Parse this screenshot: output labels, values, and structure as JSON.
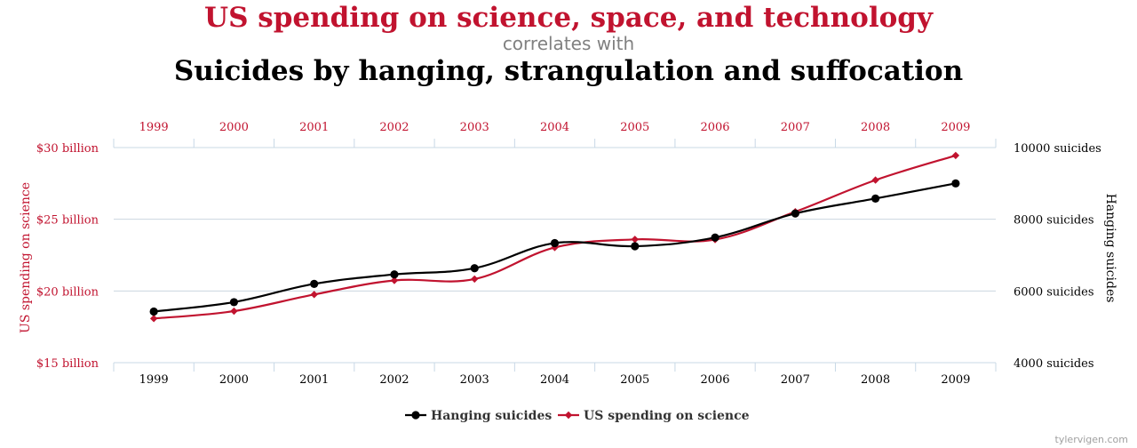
{
  "title": {
    "line1": "US spending on science, space, and technology",
    "line2": "correlates with",
    "line3": "Suicides by hanging, strangulation and suffocation"
  },
  "footer": "tylervigen.com",
  "colors": {
    "science": "#c1132f",
    "hanging": "#000000",
    "grid": "#ccd6e0",
    "axis": "#c8d8e6"
  },
  "chart_data": {
    "type": "line",
    "x": [
      1999,
      2000,
      2001,
      2002,
      2003,
      2004,
      2005,
      2006,
      2007,
      2008,
      2009
    ],
    "x_tick_labels": [
      "1999",
      "2000",
      "2001",
      "2002",
      "2003",
      "2004",
      "2005",
      "2006",
      "2007",
      "2008",
      "2009"
    ],
    "y_left": {
      "label": "US spending on science",
      "range": [
        15,
        30
      ],
      "ticks": [
        15,
        20,
        25,
        30
      ],
      "tick_labels": [
        "$15 billion",
        "$20 billion",
        "$25 billion",
        "$30 billion"
      ]
    },
    "y_right": {
      "label": "Hanging suicides",
      "range": [
        4000,
        10000
      ],
      "ticks": [
        4000,
        6000,
        8000,
        10000
      ],
      "tick_labels": [
        "4000 suicides",
        "6000 suicides",
        "8000 suicides",
        "10000 suicides"
      ]
    },
    "series": [
      {
        "name": "Hanging suicides",
        "axis": "right",
        "marker": "circle",
        "values": [
          5427,
          5688,
          6198,
          6462,
          6635,
          7336,
          7248,
          7491,
          8161,
          8578,
          9000
        ]
      },
      {
        "name": "US spending on science",
        "axis": "left",
        "marker": "diamond",
        "values": [
          18.079,
          18.594,
          19.753,
          20.734,
          20.831,
          23.029,
          23.597,
          23.584,
          25.525,
          27.731,
          29.449
        ]
      }
    ],
    "grid": "horizontal",
    "legend": "bottom-center"
  }
}
